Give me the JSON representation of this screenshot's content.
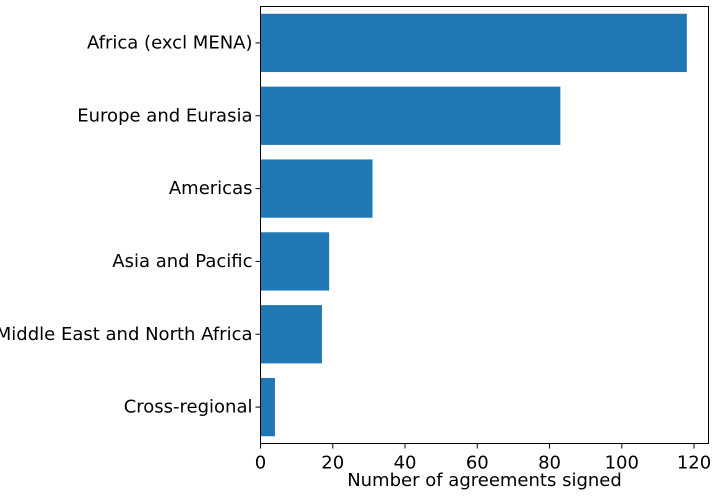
{
  "chart_data": {
    "type": "bar",
    "orientation": "horizontal",
    "categories": [
      "Africa (excl MENA)",
      "Europe and Eurasia",
      "Americas",
      "Asia and Pacific",
      "Middle East and North Africa",
      "Cross-regional"
    ],
    "values": [
      118,
      83,
      31,
      19,
      17,
      4
    ],
    "xlabel": "Number of agreements signed",
    "ylabel": "",
    "xlim": [
      0,
      124
    ],
    "xticks": [
      0,
      20,
      40,
      60,
      80,
      100,
      120
    ],
    "grid": false,
    "bar_color": "#1f77b4"
  }
}
